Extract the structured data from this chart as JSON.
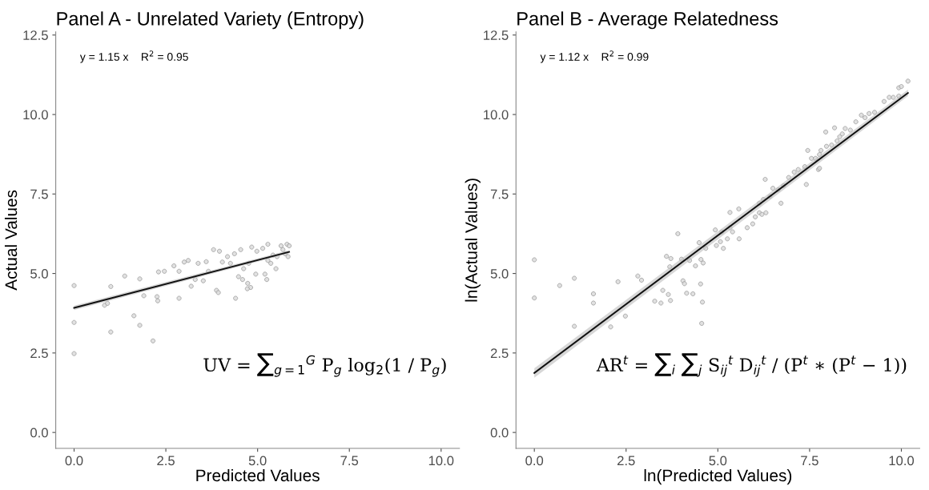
{
  "chart_data": [
    {
      "type": "scatter",
      "title": "Panel A - Unrelated Variety (Entropy)",
      "xlabel": "Predicted Values",
      "ylabel": "Actual Values",
      "xlim": [
        -0.5,
        10.5
      ],
      "ylim": [
        -0.5,
        12.6
      ],
      "xticks": [
        {
          "value": 0,
          "label": "0.0"
        },
        {
          "value": 2.5,
          "label": "2.5"
        },
        {
          "value": 5,
          "label": "5.0"
        },
        {
          "value": 7.5,
          "label": "7.5"
        },
        {
          "value": 10,
          "label": "10.0"
        }
      ],
      "yticks": [
        {
          "value": 0,
          "label": "0.0"
        },
        {
          "value": 2.5,
          "label": "2.5"
        },
        {
          "value": 5,
          "label": "5.0"
        },
        {
          "value": 7.5,
          "label": "7.5"
        },
        {
          "value": 10,
          "label": "10.0"
        },
        {
          "value": 12.5,
          "label": "12.5"
        }
      ],
      "grid": false,
      "annotations": [
        "y = 1.15 x    R$^{2}$ = 0.95",
        "UV = ∑$_{g=1}$$^{G}$ P$_{g}$ log$_{2}$(1 / P$_{g}$)"
      ],
      "series": [
        {
          "marker": "circle",
          "color": "#9a9a9a",
          "x": [
            0,
            0,
            0,
            1.0,
            1.0,
            0.83,
            0.91,
            1.38,
            1.63,
            1.79,
            1.79,
            1.9,
            2.15,
            2.26,
            2.28,
            2.3,
            2.46,
            2.72,
            2.86,
            2.86,
            3.0,
            3.11,
            3.19,
            3.38,
            3.6,
            3.52,
            3.8,
            3.96,
            3.88,
            3.93,
            4.04,
            4.18,
            4.37,
            4.4,
            4.54,
            4.48,
            4.59,
            4.73,
            4.81,
            4.72,
            4.84,
            4.98,
            5.14,
            5.28,
            4.95,
            5.25,
            5.2,
            5.36,
            5.5,
            5.53,
            5.64,
            5.8,
            5.86,
            5.83,
            5.42,
            5.28,
            5.69,
            5.75,
            4.76,
            4.62,
            4.26,
            3.66,
            3.3
          ],
          "values": [
            4.62,
            3.46,
            2.48,
            4.59,
            3.16,
            4.0,
            4.06,
            4.92,
            3.67,
            3.37,
            4.83,
            4.3,
            2.88,
            4.27,
            4.14,
            5.05,
            5.07,
            5.24,
            5.07,
            4.22,
            5.36,
            5.41,
            4.6,
            5.32,
            5.37,
            4.77,
            5.75,
            5.7,
            4.47,
            4.4,
            5.36,
            5.53,
            5.62,
            4.22,
            5.75,
            4.9,
            4.81,
            4.69,
            4.56,
            4.52,
            5.83,
            5.7,
            5.79,
            5.92,
            4.98,
            4.81,
            4.98,
            5.32,
            5.15,
            5.53,
            5.87,
            5.92,
            5.87,
            5.53,
            5.58,
            5.41,
            5.75,
            5.62,
            5.32,
            5.15,
            5.32,
            5.07,
            4.81
          ]
        },
        {
          "type": "line",
          "color": "#111111",
          "x": [
            0,
            5.86
          ],
          "values": [
            3.92,
            5.68
          ],
          "lower": [
            3.85,
            5.63
          ],
          "upper": [
            3.99,
            5.73
          ]
        }
      ]
    },
    {
      "type": "scatter",
      "title": "Panel B - Average Relatedness",
      "xlabel": "ln(Predicted Values)",
      "ylabel": "ln(Actual Values)",
      "xlim": [
        -0.5,
        10.5
      ],
      "ylim": [
        -0.5,
        12.6
      ],
      "xticks": [
        {
          "value": 0,
          "label": "0.0"
        },
        {
          "value": 2.5,
          "label": "2.5"
        },
        {
          "value": 5,
          "label": "5.0"
        },
        {
          "value": 7.5,
          "label": "7.5"
        },
        {
          "value": 10,
          "label": "10.0"
        }
      ],
      "yticks": [
        {
          "value": 0,
          "label": "0.0"
        },
        {
          "value": 2.5,
          "label": "2.5"
        },
        {
          "value": 5,
          "label": "5.0"
        },
        {
          "value": 7.5,
          "label": "7.5"
        },
        {
          "value": 10,
          "label": "10.0"
        },
        {
          "value": 12.5,
          "label": "12.5"
        }
      ],
      "grid": false,
      "annotations": [
        "y = 1.12 x    R$^{2}$ = 0.99",
        "AR$^{t}$ = ∑$_{i}$ ∑$_{j}$ S$_{ij}$$^{t}$ D$_{ij}$$^{t}$ / (P$^{t}$ ∗ (P$^{t}$ − 1))"
      ],
      "series": [
        {
          "marker": "circle",
          "color": "#9a9a9a",
          "x": [
            0,
            0,
            0.69,
            1.09,
            1.09,
            1.61,
            1.61,
            2.28,
            2.08,
            2.48,
            2.82,
            2.92,
            3.28,
            3.45,
            3.6,
            3.69,
            3.72,
            3.5,
            3.65,
            3.71,
            3.91,
            4.05,
            4.09,
            4.15,
            4.32,
            4.53,
            4.58,
            4.01,
            4.23,
            4.39,
            4.54,
            4.6,
            4.56,
            4.49,
            4.67,
            4.96,
            5.07,
            5.15,
            4.93,
            5.11,
            5.33,
            5.26,
            5.4,
            5.58,
            5.33,
            5.57,
            5.8,
            5.95,
            6.02,
            6.13,
            6.2,
            6.31,
            6.29,
            6.13,
            6.24,
            6.42,
            6.5,
            6.64,
            6.79,
            6.93,
            6.72,
            7.08,
            7.19,
            7.37,
            7.41,
            7.45,
            7.55,
            7.66,
            7.74,
            7.77,
            7.81,
            7.96,
            7.94,
            8.1,
            8.18,
            8.25,
            8.32,
            8.47,
            8.61,
            8.39,
            8.76,
            8.91,
            9.01,
            9.12,
            9.27,
            9.53,
            9.67,
            9.78,
            9.93,
            9.93,
            10.0,
            10.18,
            7.77
          ],
          "values": [
            5.43,
            4.23,
            4.62,
            4.85,
            3.34,
            4.36,
            4.07,
            4.74,
            3.32,
            3.66,
            4.92,
            4.79,
            4.13,
            4.07,
            5.54,
            5.21,
            5.47,
            4.47,
            4.34,
            4.15,
            6.25,
            4.77,
            4.68,
            4.38,
            4.36,
            4.67,
            4.1,
            5.45,
            5.41,
            5.24,
            5.44,
            5.33,
            3.43,
            5.97,
            5.79,
            5.88,
            6.0,
            5.79,
            6.37,
            6.31,
            6.44,
            6.09,
            6.31,
            6.09,
            6.92,
            7.03,
            6.44,
            6.56,
            6.78,
            6.91,
            6.86,
            6.91,
            7.96,
            7.21,
            7.33,
            7.42,
            7.68,
            7.63,
            7.76,
            8.02,
            7.21,
            8.19,
            8.27,
            8.36,
            7.8,
            8.87,
            8.62,
            8.62,
            8.27,
            8.74,
            8.87,
            9.0,
            9.45,
            9.04,
            9.58,
            9.17,
            9.3,
            9.56,
            9.51,
            9.39,
            9.77,
            9.98,
            9.9,
            10.03,
            10.07,
            10.41,
            10.54,
            10.54,
            10.58,
            10.84,
            10.88,
            11.05,
            8.31
          ]
        },
        {
          "type": "line",
          "color": "#111111",
          "x": [
            0,
            10.18
          ],
          "values": [
            1.87,
            10.68
          ],
          "lower": [
            1.72,
            10.58
          ],
          "upper": [
            2.02,
            10.78
          ]
        }
      ]
    }
  ]
}
